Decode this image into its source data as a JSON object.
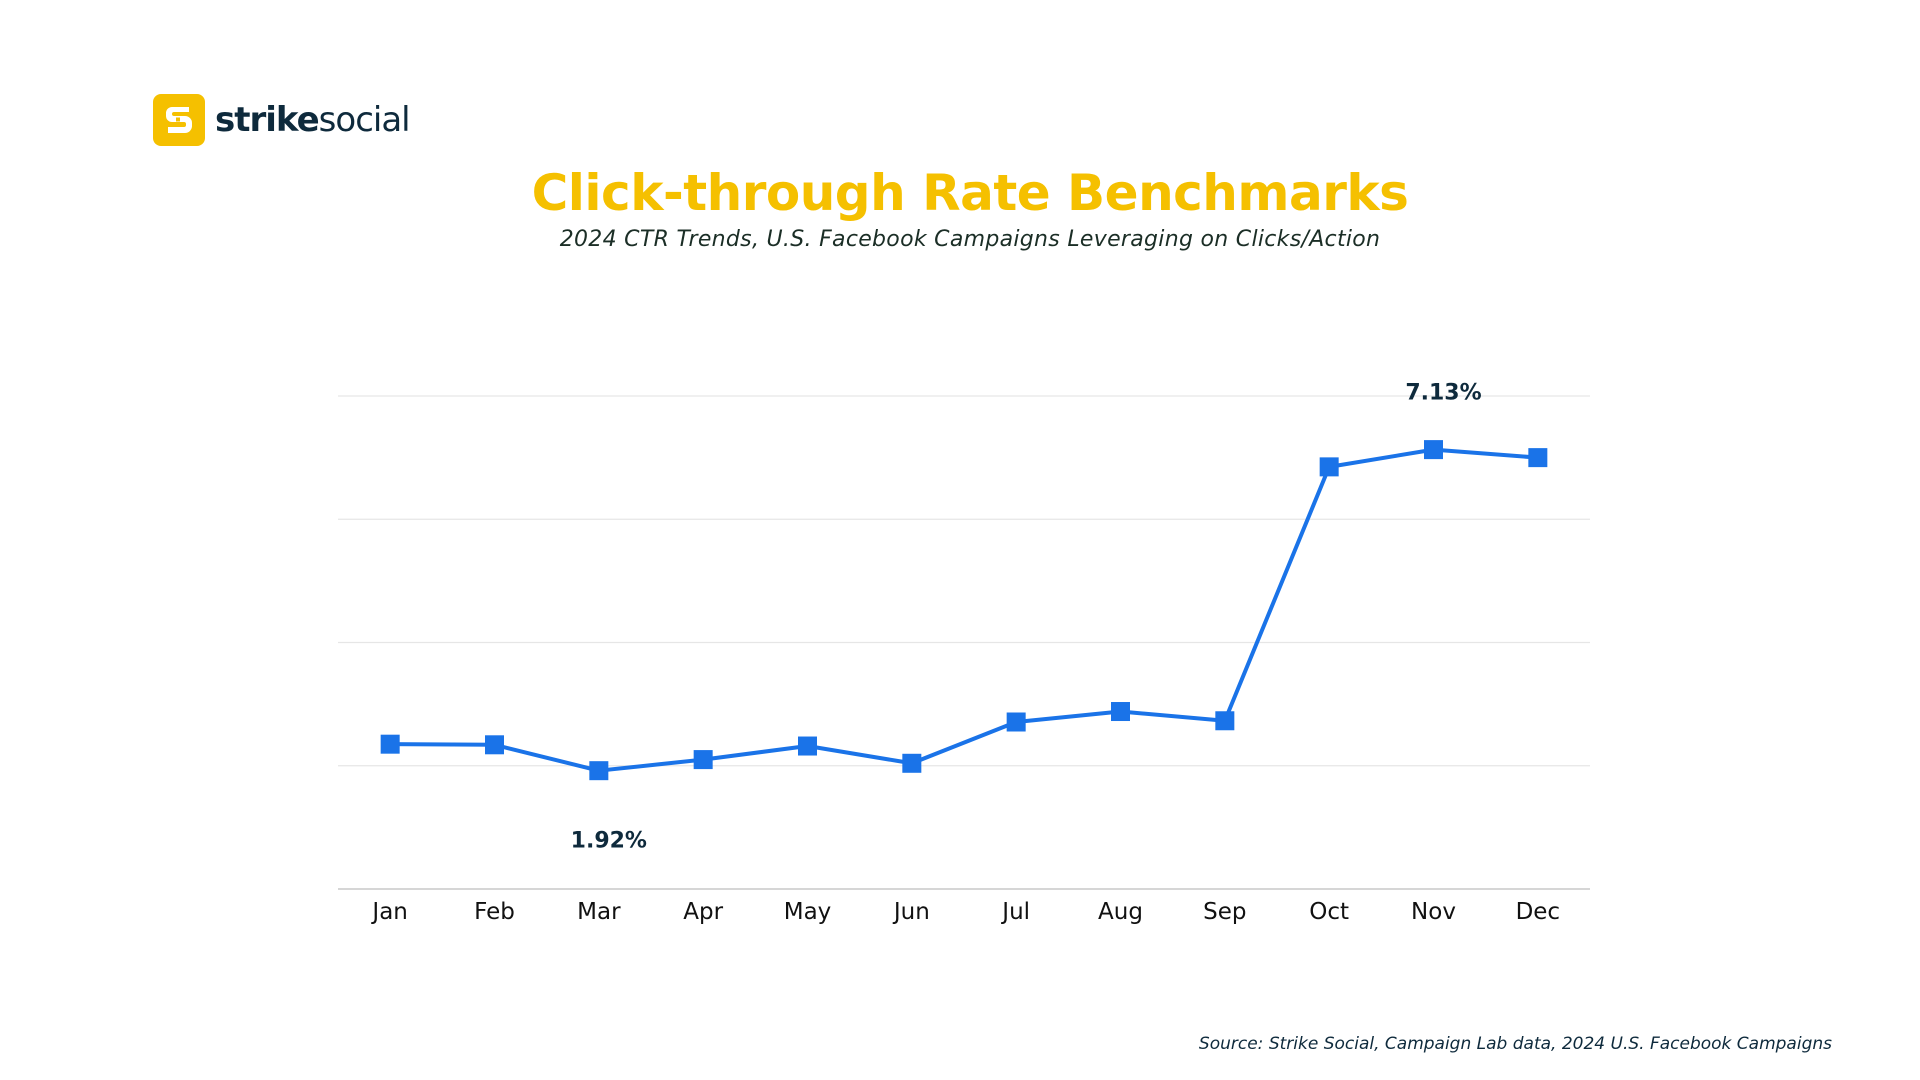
{
  "brand": {
    "name_bold": "strike",
    "name_light": "social",
    "icon": "strike-social-logo-icon",
    "color": "#f5c000"
  },
  "colors": {
    "title": "#f5c000",
    "line": "#1a73e8",
    "text": "#0e2a3c",
    "grid": "#e6e6e6",
    "axis": "#c8c8c8"
  },
  "source": "Source: Strike Social, Campaign Lab data, 2024 U.S. Facebook Campaigns",
  "chart_data": {
    "type": "line",
    "title": "Click-through Rate Benchmarks",
    "subtitle": "2024 CTR Trends, U.S. Facebook Campaigns Leveraging on Clicks/Action",
    "xlabel": "",
    "ylabel": "",
    "categories": [
      "Jan",
      "Feb",
      "Mar",
      "Apr",
      "May",
      "Jun",
      "Jul",
      "Aug",
      "Sep",
      "Oct",
      "Nov",
      "Dec"
    ],
    "series": [
      {
        "values": [
          2.35,
          2.34,
          1.92,
          2.1,
          2.32,
          2.04,
          2.71,
          2.88,
          2.73,
          6.85,
          7.13,
          7.0
        ]
      }
    ],
    "ylim": [
      0,
      8
    ],
    "yticks": [
      0,
      2,
      4,
      6,
      8
    ],
    "y_tick_labels_shown": false,
    "grid": true,
    "legend": "none",
    "marker": "square",
    "annotations": [
      {
        "index": 2,
        "text": "1.92%",
        "position": "below"
      },
      {
        "index": 10,
        "text": "7.13%",
        "position": "above"
      }
    ]
  }
}
